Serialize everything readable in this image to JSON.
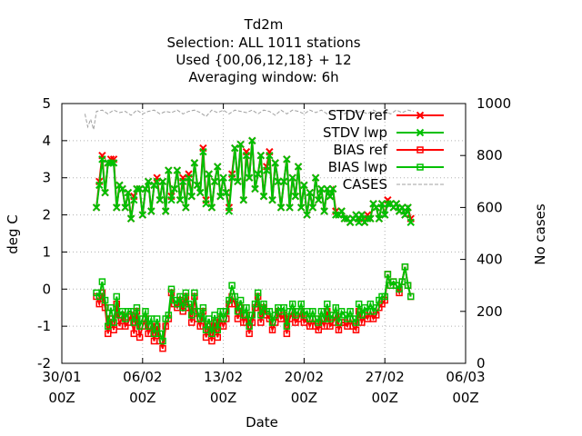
{
  "chart_data": {
    "type": "line",
    "title": [
      "Td2m",
      "Selection: ALL    1011 stations",
      "Used {00,06,12,18} + 12",
      "Averaging window:  6h"
    ],
    "xlabel": "Date",
    "ylabel": "deg C",
    "y2label": "No cases",
    "ylim": [
      -2,
      5
    ],
    "y2lim": [
      0,
      1000
    ],
    "xlim_days": [
      0,
      35
    ],
    "grid": true,
    "legend_position": "top-right",
    "x_ticks": [
      {
        "day": 0,
        "line1": "30/01",
        "line2": "00Z"
      },
      {
        "day": 7,
        "line1": "06/02",
        "line2": "00Z"
      },
      {
        "day": 14,
        "line1": "13/02",
        "line2": "00Z"
      },
      {
        "day": 21,
        "line1": "20/02",
        "line2": "00Z"
      },
      {
        "day": 28,
        "line1": "27/02",
        "line2": "00Z"
      },
      {
        "day": 35,
        "line1": "06/03",
        "line2": "00Z"
      }
    ],
    "y_ticks": [
      -2,
      -1,
      0,
      1,
      2,
      3,
      4,
      5
    ],
    "y2_ticks": [
      0,
      200,
      400,
      600,
      800,
      1000
    ],
    "series": [
      {
        "name": "STDV ref",
        "color": "#ff0000",
        "marker": "x",
        "x": [
          3,
          3.25,
          3.5,
          3.75,
          4,
          4.25,
          4.5,
          4.75,
          5,
          5.25,
          5.5,
          5.75,
          6,
          6.25,
          6.5,
          6.75,
          7,
          7.25,
          7.5,
          7.75,
          8,
          8.25,
          8.5,
          8.75,
          9,
          9.25,
          9.5,
          9.75,
          10,
          10.25,
          10.5,
          10.75,
          11,
          11.25,
          11.5,
          11.75,
          12,
          12.25,
          12.5,
          12.75,
          13,
          13.25,
          13.5,
          13.75,
          14,
          14.25,
          14.5,
          14.75,
          15,
          15.25,
          15.5,
          15.75,
          16,
          16.25,
          16.5,
          16.75,
          17,
          17.25,
          17.5,
          17.75,
          18,
          18.25,
          18.5,
          18.75,
          19,
          19.25,
          19.5,
          19.75,
          20,
          20.25,
          20.5,
          20.75,
          21,
          21.25,
          21.5,
          21.75,
          22,
          22.25,
          22.5,
          22.75,
          23,
          23.25,
          23.5,
          23.75,
          24,
          24.25,
          24.5,
          24.75,
          25,
          25.25,
          25.5,
          25.75,
          26,
          26.25,
          26.5,
          26.75,
          27,
          27.25,
          27.5,
          27.75,
          28,
          28.25,
          28.5,
          28.75,
          29,
          29.25,
          29.5,
          29.75,
          30,
          30.25
        ],
        "y": [
          2.2,
          2.9,
          3.6,
          2.6,
          3.4,
          3.5,
          3.5,
          2.2,
          2.8,
          2.7,
          2.2,
          2.6,
          1.9,
          2.5,
          2.7,
          2.7,
          2.0,
          2.7,
          2.9,
          2.1,
          2.8,
          3.0,
          2.4,
          2.9,
          2.1,
          3.2,
          2.5,
          2.7,
          3.2,
          2.4,
          3.0,
          2.2,
          3.1,
          2.5,
          3.4,
          2.8,
          2.6,
          3.8,
          2.4,
          3.1,
          2.2,
          2.9,
          3.3,
          2.5,
          3.0,
          2.6,
          2.2,
          3.1,
          3.8,
          2.9,
          3.9,
          2.4,
          3.7,
          3.0,
          4.0,
          2.7,
          3.1,
          3.6,
          2.5,
          3.3,
          3.7,
          2.4,
          3.4,
          2.9,
          2.2,
          2.9,
          3.5,
          2.2,
          3.0,
          2.5,
          3.3,
          2.2,
          2.8,
          2.0,
          2.6,
          2.2,
          3.0,
          2.4,
          2.7,
          2.1,
          2.7,
          2.5,
          2.7,
          2.1,
          2.0,
          2.1,
          1.9,
          1.9,
          1.8,
          1.9,
          2.0,
          1.9,
          2.0,
          1.8,
          2.0,
          1.9,
          2.3,
          2.2,
          1.9,
          2.3,
          2.0,
          2.4,
          2.3,
          2.2,
          2.3,
          2.1,
          2.2,
          2.0,
          2.2,
          1.9
        ]
      },
      {
        "name": "STDV lwp",
        "color": "#00c000",
        "marker": "x",
        "x": [
          3,
          3.25,
          3.5,
          3.75,
          4,
          4.25,
          4.5,
          4.75,
          5,
          5.25,
          5.5,
          5.75,
          6,
          6.25,
          6.5,
          6.75,
          7,
          7.25,
          7.5,
          7.75,
          8,
          8.25,
          8.5,
          8.75,
          9,
          9.25,
          9.5,
          9.75,
          10,
          10.25,
          10.5,
          10.75,
          11,
          11.25,
          11.5,
          11.75,
          12,
          12.25,
          12.5,
          12.75,
          13,
          13.25,
          13.5,
          13.75,
          14,
          14.25,
          14.5,
          14.75,
          15,
          15.25,
          15.5,
          15.75,
          16,
          16.25,
          16.5,
          16.75,
          17,
          17.25,
          17.5,
          17.75,
          18,
          18.25,
          18.5,
          18.75,
          19,
          19.25,
          19.5,
          19.75,
          20,
          20.25,
          20.5,
          20.75,
          21,
          21.25,
          21.5,
          21.75,
          22,
          22.25,
          22.5,
          22.75,
          23,
          23.25,
          23.5,
          23.75,
          24,
          24.25,
          24.5,
          24.75,
          25,
          25.25,
          25.5,
          25.75,
          26,
          26.25,
          26.5,
          26.75,
          27,
          27.25,
          27.5,
          27.75,
          28,
          28.25,
          28.5,
          28.75,
          29,
          29.25,
          29.5,
          29.75,
          30,
          30.25
        ],
        "y": [
          2.2,
          2.8,
          3.5,
          2.6,
          3.4,
          3.4,
          3.4,
          2.2,
          2.8,
          2.7,
          2.2,
          2.6,
          1.9,
          2.4,
          2.7,
          2.7,
          2.0,
          2.7,
          2.9,
          2.1,
          2.8,
          2.9,
          2.4,
          2.9,
          2.1,
          3.2,
          2.4,
          2.7,
          3.2,
          2.4,
          2.9,
          2.2,
          3.0,
          2.5,
          3.4,
          2.8,
          2.6,
          3.7,
          2.3,
          3.1,
          2.2,
          2.9,
          3.3,
          2.5,
          3.0,
          2.6,
          2.1,
          3.0,
          3.8,
          2.9,
          3.9,
          2.4,
          3.6,
          3.0,
          4.0,
          2.7,
          3.1,
          3.6,
          2.5,
          3.2,
          3.6,
          2.4,
          3.4,
          2.9,
          2.2,
          2.9,
          3.5,
          2.2,
          3.0,
          2.5,
          3.3,
          2.2,
          2.8,
          2.0,
          2.6,
          2.2,
          3.0,
          2.4,
          2.7,
          2.1,
          2.7,
          2.5,
          2.7,
          2.0,
          2.0,
          2.1,
          1.9,
          1.9,
          1.8,
          1.9,
          2.0,
          1.8,
          2.0,
          1.8,
          1.9,
          1.9,
          2.3,
          2.2,
          1.9,
          2.3,
          2.0,
          2.3,
          2.3,
          2.2,
          2.3,
          2.1,
          2.2,
          2.0,
          2.2,
          1.8
        ]
      },
      {
        "name": "BIAS ref",
        "color": "#ff0000",
        "marker": "square",
        "x": [
          3,
          3.25,
          3.5,
          3.75,
          4,
          4.25,
          4.5,
          4.75,
          5,
          5.25,
          5.5,
          5.75,
          6,
          6.25,
          6.5,
          6.75,
          7,
          7.25,
          7.5,
          7.75,
          8,
          8.25,
          8.5,
          8.75,
          9,
          9.25,
          9.5,
          9.75,
          10,
          10.25,
          10.5,
          10.75,
          11,
          11.25,
          11.5,
          11.75,
          12,
          12.25,
          12.5,
          12.75,
          13,
          13.25,
          13.5,
          13.75,
          14,
          14.25,
          14.5,
          14.75,
          15,
          15.25,
          15.5,
          15.75,
          16,
          16.25,
          16.5,
          16.75,
          17,
          17.25,
          17.5,
          17.75,
          18,
          18.25,
          18.5,
          18.75,
          19,
          19.25,
          19.5,
          19.75,
          20,
          20.25,
          20.5,
          20.75,
          21,
          21.25,
          21.5,
          21.75,
          22,
          22.25,
          22.5,
          22.75,
          23,
          23.25,
          23.5,
          23.75,
          24,
          24.25,
          24.5,
          24.75,
          25,
          25.25,
          25.5,
          25.75,
          26,
          26.25,
          26.5,
          26.75,
          27,
          27.25,
          27.5,
          27.75,
          28,
          28.25,
          28.5,
          28.75,
          29,
          29.25,
          29.5,
          29.75,
          30,
          30.25
        ],
        "y": [
          -0.2,
          -0.4,
          -0.1,
          -0.5,
          -1.2,
          -0.8,
          -1.1,
          -0.4,
          -1.0,
          -0.7,
          -1.0,
          -0.9,
          -0.7,
          -1.2,
          -0.6,
          -1.3,
          -1.0,
          -0.8,
          -1.2,
          -1.0,
          -1.4,
          -1.0,
          -1.4,
          -1.6,
          -1.0,
          -0.8,
          -0.1,
          -0.4,
          -0.5,
          -0.3,
          -0.6,
          -0.2,
          -0.5,
          -0.9,
          -0.2,
          -0.8,
          -1.0,
          -0.6,
          -1.3,
          -1.0,
          -1.4,
          -0.9,
          -1.3,
          -0.8,
          -1.0,
          -0.8,
          -0.4,
          -0.2,
          -0.4,
          -0.8,
          -0.5,
          -0.9,
          -0.7,
          -1.2,
          -0.9,
          -0.5,
          -0.2,
          -0.9,
          -0.5,
          -0.7,
          -0.8,
          -1.1,
          -0.9,
          -0.6,
          -0.8,
          -0.7,
          -1.2,
          -0.8,
          -0.6,
          -0.9,
          -0.8,
          -0.6,
          -0.9,
          -0.8,
          -1.0,
          -0.8,
          -1.0,
          -1.1,
          -0.8,
          -1.0,
          -0.6,
          -1.0,
          -0.9,
          -0.7,
          -1.1,
          -0.9,
          -0.9,
          -1.0,
          -0.8,
          -1.0,
          -1.1,
          -0.6,
          -0.9,
          -0.7,
          -0.8,
          -0.6,
          -0.8,
          -0.7,
          -0.5,
          -0.4,
          -0.3,
          0.4,
          0.1,
          0.2,
          0.1,
          -0.1,
          0.2,
          0.6,
          0.1,
          -0.2
        ]
      },
      {
        "name": "BIAS lwp",
        "color": "#00c000",
        "marker": "square",
        "x": [
          3,
          3.25,
          3.5,
          3.75,
          4,
          4.25,
          4.5,
          4.75,
          5,
          5.25,
          5.5,
          5.75,
          6,
          6.25,
          6.5,
          6.75,
          7,
          7.25,
          7.5,
          7.75,
          8,
          8.25,
          8.5,
          8.75,
          9,
          9.25,
          9.5,
          9.75,
          10,
          10.25,
          10.5,
          10.75,
          11,
          11.25,
          11.5,
          11.75,
          12,
          12.25,
          12.5,
          12.75,
          13,
          13.25,
          13.5,
          13.75,
          14,
          14.25,
          14.5,
          14.75,
          15,
          15.25,
          15.5,
          15.75,
          16,
          16.25,
          16.5,
          16.75,
          17,
          17.25,
          17.5,
          17.75,
          18,
          18.25,
          18.5,
          18.75,
          19,
          19.25,
          19.5,
          19.75,
          20,
          20.25,
          20.5,
          20.75,
          21,
          21.25,
          21.5,
          21.75,
          22,
          22.25,
          22.5,
          22.75,
          23,
          23.25,
          23.5,
          23.75,
          24,
          24.25,
          24.5,
          24.75,
          25,
          25.25,
          25.5,
          25.75,
          26,
          26.25,
          26.5,
          26.75,
          27,
          27.25,
          27.5,
          27.75,
          28,
          28.25,
          28.5,
          28.75,
          29,
          29.25,
          29.5,
          29.75,
          30,
          30.25
        ],
        "y": [
          -0.1,
          -0.2,
          0.2,
          -0.3,
          -1.0,
          -0.5,
          -0.9,
          -0.2,
          -0.7,
          -0.6,
          -0.8,
          -0.6,
          -0.6,
          -0.9,
          -0.5,
          -1.0,
          -0.8,
          -0.6,
          -1.0,
          -0.8,
          -1.2,
          -0.8,
          -1.2,
          -1.4,
          -0.8,
          -0.7,
          0.0,
          -0.3,
          -0.4,
          -0.2,
          -0.5,
          -0.1,
          -0.4,
          -0.7,
          -0.1,
          -0.6,
          -0.8,
          -0.5,
          -1.1,
          -0.8,
          -1.2,
          -0.7,
          -1.1,
          -0.6,
          -0.8,
          -0.6,
          -0.3,
          0.1,
          -0.2,
          -0.6,
          -0.3,
          -0.7,
          -0.5,
          -1.0,
          -0.7,
          -0.4,
          -0.1,
          -0.7,
          -0.4,
          -0.6,
          -0.6,
          -0.9,
          -0.7,
          -0.5,
          -0.6,
          -0.5,
          -1.0,
          -0.6,
          -0.4,
          -0.7,
          -0.6,
          -0.4,
          -0.7,
          -0.6,
          -0.8,
          -0.6,
          -0.8,
          -0.9,
          -0.6,
          -0.8,
          -0.4,
          -0.8,
          -0.7,
          -0.5,
          -0.9,
          -0.6,
          -0.7,
          -0.8,
          -0.6,
          -0.8,
          -0.9,
          -0.4,
          -0.7,
          -0.5,
          -0.6,
          -0.4,
          -0.6,
          -0.5,
          -0.3,
          -0.2,
          -0.2,
          0.4,
          0.1,
          0.2,
          0.1,
          0.0,
          0.2,
          0.6,
          0.1,
          -0.2
        ]
      },
      {
        "name": "CASES",
        "color": "#a0a0a0",
        "marker": "none",
        "axis": "y2",
        "x": [
          2,
          2.25,
          2.5,
          2.75,
          3,
          3.5,
          4,
          4.5,
          5,
          5.5,
          6,
          6.5,
          7,
          7.5,
          8,
          8.5,
          9,
          9.5,
          10,
          10.5,
          11,
          11.5,
          12,
          12.5,
          13,
          13.5,
          14,
          14.5,
          15,
          15.5,
          16,
          16.5,
          17,
          17.5,
          18,
          18.5,
          19,
          19.5,
          20,
          20.5,
          21,
          21.5,
          22,
          22.5,
          23,
          23.5,
          24,
          24.5,
          25,
          25.5,
          26,
          26.5,
          27,
          27.5,
          28,
          28.5,
          29,
          29.5,
          30,
          30.5
        ],
        "y": [
          960,
          910,
          940,
          900,
          970,
          975,
          960,
          975,
          965,
          970,
          955,
          975,
          960,
          970,
          975,
          960,
          970,
          965,
          975,
          960,
          970,
          975,
          965,
          950,
          975,
          965,
          975,
          960,
          975,
          970,
          965,
          975,
          960,
          975,
          970,
          955,
          975,
          960,
          975,
          970,
          960,
          975,
          965,
          975,
          960,
          970,
          975,
          960,
          975,
          965,
          970,
          960,
          975,
          965,
          970,
          960,
          975,
          965,
          975,
          970
        ]
      }
    ]
  }
}
